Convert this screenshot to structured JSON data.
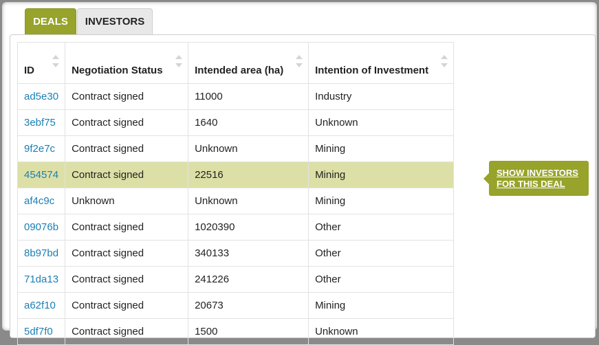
{
  "tabs": {
    "deals": "DEALS",
    "investors": "INVESTORS"
  },
  "table": {
    "headers": [
      "ID",
      "Negotiation Status",
      "Intended area (ha)",
      "Intention of Investment"
    ],
    "rows": [
      {
        "id": "ad5e30",
        "status": "Contract signed",
        "area": "11000",
        "intention": "Industry"
      },
      {
        "id": "3ebf75",
        "status": "Contract signed",
        "area": "1640",
        "intention": "Unknown"
      },
      {
        "id": "9f2e7c",
        "status": "Contract signed",
        "area": "Unknown",
        "intention": "Mining"
      },
      {
        "id": "454574",
        "status": "Contract signed",
        "area": "22516",
        "intention": "Mining"
      },
      {
        "id": "af4c9c",
        "status": "Unknown",
        "area": "Unknown",
        "intention": "Mining"
      },
      {
        "id": "09076b",
        "status": "Contract signed",
        "area": "1020390",
        "intention": "Other"
      },
      {
        "id": "8b97bd",
        "status": "Contract signed",
        "area": "340133",
        "intention": "Other"
      },
      {
        "id": "71da13",
        "status": "Contract signed",
        "area": "241226",
        "intention": "Other"
      },
      {
        "id": "a62f10",
        "status": "Contract signed",
        "area": "20673",
        "intention": "Mining"
      },
      {
        "id": "5df7f0",
        "status": "Contract signed",
        "area": "1500",
        "intention": "Unknown"
      }
    ]
  },
  "tooltip": {
    "line1": "SHOW INVESTORS",
    "line2": "FOR THIS DEAL"
  },
  "colors": {
    "accent": "#97a32a",
    "highlight_row": "#dde0a6",
    "link": "#1a7fb5"
  }
}
